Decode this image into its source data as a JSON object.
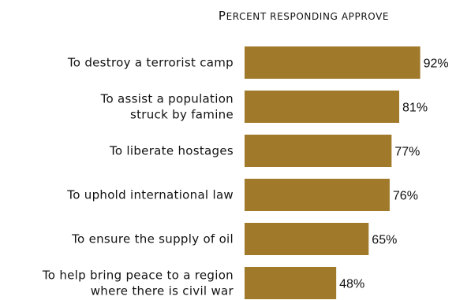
{
  "chart_data": {
    "type": "bar",
    "orientation": "horizontal",
    "title": "Percent responding approve",
    "xlabel": "",
    "ylabel": "",
    "categories": [
      [
        "To destroy a terrorist camp"
      ],
      [
        "To assist a population",
        "struck by famine"
      ],
      [
        "To liberate hostages"
      ],
      [
        "To uphold international law"
      ],
      [
        "To ensure the supply of oil"
      ],
      [
        "To help bring peace to a region",
        "where there is civil war"
      ]
    ],
    "values": [
      92,
      81,
      77,
      76,
      65,
      48
    ],
    "value_labels": [
      "92%",
      "81%",
      "77%",
      "76%",
      "65%",
      "48%"
    ],
    "xlim": [
      0,
      100
    ],
    "grid": false,
    "legend": "none",
    "bar_color": "#A07A2A"
  }
}
